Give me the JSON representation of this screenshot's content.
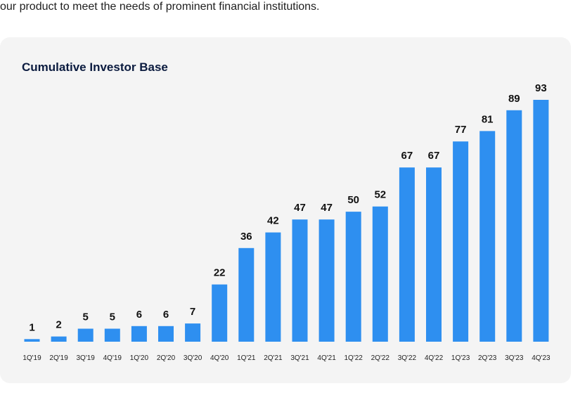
{
  "page": {
    "intro_text": "our product to meet the needs of prominent financial institutions."
  },
  "colors": {
    "bar": "#2e8ff0",
    "card_bg": "#f4f4f4",
    "title": "#0b1b3f"
  },
  "chart_data": {
    "type": "bar",
    "title": "Cumulative Investor Base",
    "categories": [
      "1Q'19",
      "2Q'19",
      "3Q'19",
      "4Q'19",
      "1Q'20",
      "2Q'20",
      "3Q'20",
      "4Q'20",
      "1Q'21",
      "2Q'21",
      "3Q'21",
      "4Q'21",
      "1Q'22",
      "2Q'22",
      "3Q'22",
      "4Q'22",
      "1Q'23",
      "2Q'23",
      "3Q'23",
      "4Q'23"
    ],
    "values": [
      1,
      2,
      5,
      5,
      6,
      6,
      7,
      22,
      36,
      42,
      47,
      47,
      50,
      52,
      67,
      67,
      77,
      81,
      89,
      93
    ],
    "xlabel": "",
    "ylabel": "",
    "grid": false,
    "data_labels": true
  }
}
